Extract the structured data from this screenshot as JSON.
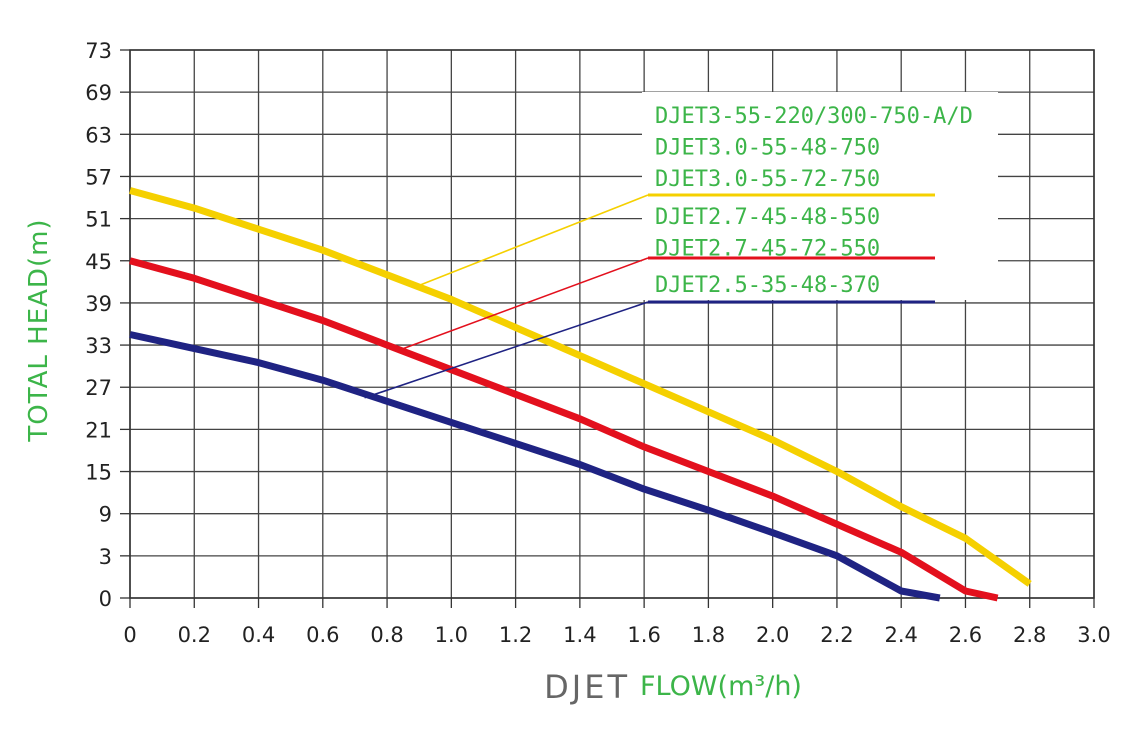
{
  "chart_data": {
    "type": "line",
    "ylabel": "TOTAL HEAD(m)",
    "xlabel_brand": "DJET",
    "xlabel": "FLOW(m³/h)",
    "x_ticks": [
      "0",
      "0.2",
      "0.4",
      "0.6",
      "0.8",
      "1.0",
      "1.2",
      "1.4",
      "1.6",
      "1.8",
      "2.0",
      "2.2",
      "2.4",
      "2.6",
      "2.8",
      "3.0"
    ],
    "y_ticks": [
      "73",
      "69",
      "63",
      "57",
      "51",
      "45",
      "39",
      "33",
      "27",
      "21",
      "15",
      "9",
      "3",
      "0"
    ],
    "grid": true,
    "series": [
      {
        "color": "#f5d000",
        "labels": [
          "DJET3-55-220/300-750-A/D",
          "DJET3.0-55-48-750",
          "DJET3.0-55-72-750"
        ],
        "points": [
          [
            0,
            55
          ],
          [
            0.2,
            52.5
          ],
          [
            0.4,
            49.5
          ],
          [
            0.6,
            46.5
          ],
          [
            0.8,
            43
          ],
          [
            1.0,
            39.5
          ],
          [
            1.2,
            35.5
          ],
          [
            1.4,
            31.5
          ],
          [
            1.6,
            27.5
          ],
          [
            1.8,
            23.5
          ],
          [
            2.0,
            19.5
          ],
          [
            2.2,
            15
          ],
          [
            2.4,
            10
          ],
          [
            2.6,
            5.5
          ],
          [
            2.8,
            1
          ]
        ],
        "leader_from": [
          0.9,
          41.5
        ]
      },
      {
        "color": "#e3101d",
        "labels": [
          "DJET2.7-45-48-550",
          "DJET2.7-45-72-550"
        ],
        "points": [
          [
            0,
            45
          ],
          [
            0.2,
            42.5
          ],
          [
            0.4,
            39.5
          ],
          [
            0.6,
            36.5
          ],
          [
            0.8,
            33
          ],
          [
            1.0,
            29.5
          ],
          [
            1.2,
            26
          ],
          [
            1.4,
            22.5
          ],
          [
            1.6,
            18.5
          ],
          [
            1.8,
            15
          ],
          [
            2.0,
            11.5
          ],
          [
            2.2,
            7.5
          ],
          [
            2.4,
            3.5
          ],
          [
            2.6,
            0.5
          ],
          [
            2.7,
            0
          ]
        ],
        "leader_from": [
          0.85,
          32.5
        ]
      },
      {
        "color": "#1f2383",
        "labels": [
          "DJET2.5-35-48-370"
        ],
        "points": [
          [
            0,
            34.5
          ],
          [
            0.2,
            32.5
          ],
          [
            0.4,
            30.5
          ],
          [
            0.6,
            28
          ],
          [
            0.8,
            25
          ],
          [
            1.0,
            22
          ],
          [
            1.2,
            19
          ],
          [
            1.4,
            16
          ],
          [
            1.6,
            12.5
          ],
          [
            1.8,
            9.5
          ],
          [
            2.0,
            6.3
          ],
          [
            2.2,
            3
          ],
          [
            2.4,
            0.5
          ],
          [
            2.52,
            0
          ]
        ],
        "leader_from": [
          0.73,
          25.5
        ]
      }
    ]
  }
}
